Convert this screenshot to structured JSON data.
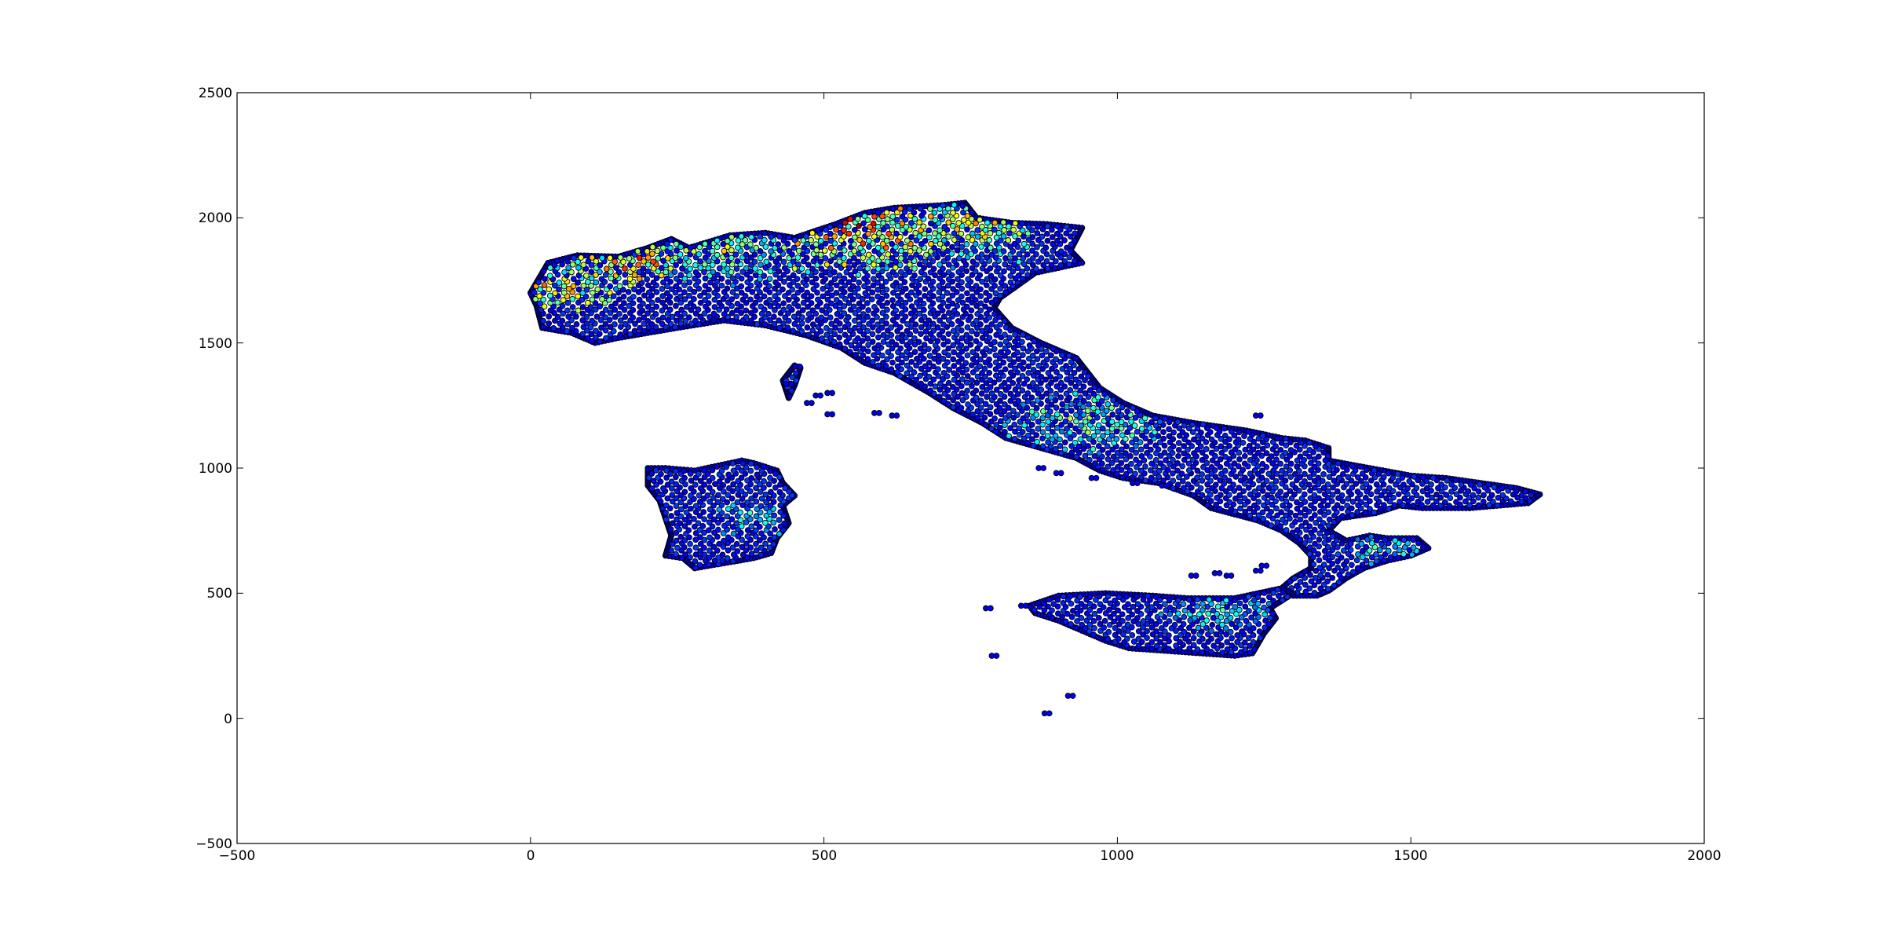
{
  "chart_data": {
    "type": "scatter",
    "title": "",
    "xlabel": "",
    "ylabel": "",
    "xlim": [
      -500,
      2000
    ],
    "ylim": [
      -500,
      2500
    ],
    "xticks": [
      -500,
      0,
      500,
      1000,
      1500,
      2000
    ],
    "yticks": [
      -500,
      0,
      500,
      1000,
      1500,
      2000,
      2500
    ],
    "xtick_labels": [
      "−500",
      "0",
      "500",
      "1000",
      "1500",
      "2000"
    ],
    "ytick_labels": [
      "−500",
      "0",
      "500",
      "1000",
      "1500",
      "2000",
      "2500"
    ],
    "grid": false,
    "colormap": "jet",
    "marker_edge_color": "#000000",
    "background_color": "#ffffff",
    "regions": [
      {
        "name": "mainland",
        "outline": [
          [
            0,
            1700
          ],
          [
            30,
            1820
          ],
          [
            80,
            1850
          ],
          [
            150,
            1845
          ],
          [
            200,
            1880
          ],
          [
            240,
            1915
          ],
          [
            270,
            1880
          ],
          [
            340,
            1930
          ],
          [
            400,
            1940
          ],
          [
            450,
            1920
          ],
          [
            520,
            1975
          ],
          [
            570,
            2020
          ],
          [
            620,
            2040
          ],
          [
            700,
            2050
          ],
          [
            740,
            2060
          ],
          [
            760,
            2000
          ],
          [
            820,
            1980
          ],
          [
            880,
            1975
          ],
          [
            940,
            1960
          ],
          [
            920,
            1870
          ],
          [
            940,
            1820
          ],
          [
            900,
            1800
          ],
          [
            860,
            1780
          ],
          [
            830,
            1730
          ],
          [
            800,
            1680
          ],
          [
            790,
            1640
          ],
          [
            820,
            1560
          ],
          [
            870,
            1500
          ],
          [
            930,
            1440
          ],
          [
            970,
            1320
          ],
          [
            1010,
            1260
          ],
          [
            1060,
            1210
          ],
          [
            1130,
            1180
          ],
          [
            1220,
            1150
          ],
          [
            1280,
            1120
          ],
          [
            1320,
            1110
          ],
          [
            1360,
            1080
          ],
          [
            1360,
            1030
          ],
          [
            1430,
            1000
          ],
          [
            1500,
            970
          ],
          [
            1560,
            960
          ],
          [
            1620,
            940
          ],
          [
            1680,
            920
          ],
          [
            1720,
            895
          ],
          [
            1700,
            860
          ],
          [
            1600,
            840
          ],
          [
            1520,
            840
          ],
          [
            1480,
            850
          ],
          [
            1440,
            820
          ],
          [
            1380,
            800
          ],
          [
            1360,
            750
          ],
          [
            1390,
            710
          ],
          [
            1430,
            730
          ],
          [
            1460,
            720
          ],
          [
            1510,
            720
          ],
          [
            1530,
            680
          ],
          [
            1500,
            650
          ],
          [
            1460,
            630
          ],
          [
            1420,
            600
          ],
          [
            1390,
            560
          ],
          [
            1360,
            510
          ],
          [
            1340,
            490
          ],
          [
            1300,
            490
          ],
          [
            1280,
            520
          ],
          [
            1300,
            560
          ],
          [
            1330,
            600
          ],
          [
            1330,
            650
          ],
          [
            1310,
            700
          ],
          [
            1280,
            750
          ],
          [
            1240,
            790
          ],
          [
            1160,
            840
          ],
          [
            1130,
            890
          ],
          [
            1070,
            940
          ],
          [
            1010,
            960
          ],
          [
            970,
            990
          ],
          [
            930,
            1040
          ],
          [
            870,
            1080
          ],
          [
            810,
            1120
          ],
          [
            770,
            1180
          ],
          [
            720,
            1240
          ],
          [
            680,
            1300
          ],
          [
            620,
            1380
          ],
          [
            570,
            1420
          ],
          [
            530,
            1480
          ],
          [
            470,
            1530
          ],
          [
            400,
            1570
          ],
          [
            330,
            1590
          ],
          [
            250,
            1560
          ],
          [
            200,
            1540
          ],
          [
            150,
            1520
          ],
          [
            110,
            1500
          ],
          [
            70,
            1540
          ],
          [
            20,
            1560
          ],
          [
            10,
            1650
          ]
        ],
        "hot_spots": [
          {
            "x": 60,
            "y": 1720,
            "level": 0.65,
            "spread": 120
          },
          {
            "x": 170,
            "y": 1820,
            "level": 0.7,
            "spread": 120
          },
          {
            "x": 560,
            "y": 1960,
            "level": 0.72,
            "spread": 220
          },
          {
            "x": 760,
            "y": 1970,
            "level": 0.55,
            "spread": 180
          },
          {
            "x": 330,
            "y": 1880,
            "level": 0.5,
            "spread": 160
          },
          {
            "x": 950,
            "y": 1180,
            "level": 0.45,
            "spread": 160
          },
          {
            "x": 1450,
            "y": 680,
            "level": 0.35,
            "spread": 100
          }
        ]
      },
      {
        "name": "sicily",
        "outline": [
          [
            850,
            450
          ],
          [
            900,
            490
          ],
          [
            980,
            500
          ],
          [
            1060,
            490
          ],
          [
            1120,
            480
          ],
          [
            1200,
            480
          ],
          [
            1280,
            520
          ],
          [
            1300,
            500
          ],
          [
            1260,
            440
          ],
          [
            1270,
            400
          ],
          [
            1250,
            340
          ],
          [
            1230,
            260
          ],
          [
            1200,
            250
          ],
          [
            1140,
            260
          ],
          [
            1080,
            270
          ],
          [
            1020,
            280
          ],
          [
            980,
            310
          ],
          [
            940,
            350
          ],
          [
            900,
            390
          ],
          [
            860,
            420
          ]
        ],
        "hot_spots": [
          {
            "x": 1180,
            "y": 420,
            "level": 0.35,
            "spread": 120
          }
        ]
      },
      {
        "name": "sardinia",
        "outline": [
          [
            200,
            1000
          ],
          [
            230,
            1000
          ],
          [
            280,
            990
          ],
          [
            320,
            1010
          ],
          [
            360,
            1030
          ],
          [
            380,
            1020
          ],
          [
            420,
            990
          ],
          [
            430,
            940
          ],
          [
            450,
            890
          ],
          [
            430,
            850
          ],
          [
            440,
            780
          ],
          [
            420,
            720
          ],
          [
            410,
            660
          ],
          [
            380,
            640
          ],
          [
            330,
            620
          ],
          [
            280,
            600
          ],
          [
            260,
            640
          ],
          [
            230,
            650
          ],
          [
            240,
            730
          ],
          [
            230,
            800
          ],
          [
            220,
            870
          ],
          [
            200,
            930
          ]
        ],
        "hot_spots": [
          {
            "x": 380,
            "y": 800,
            "level": 0.35,
            "spread": 100
          }
        ]
      },
      {
        "name": "corsica",
        "outline": [
          [
            440,
            1280
          ],
          [
            430,
            1350
          ],
          [
            450,
            1410
          ],
          [
            460,
            1400
          ],
          [
            450,
            1330
          ]
        ],
        "hot_spots": []
      }
    ],
    "small_islands": [
      [
        455,
        1405
      ],
      [
        440,
        1335
      ],
      [
        490,
        1290
      ],
      [
        510,
        1300
      ],
      [
        475,
        1260
      ],
      [
        510,
        1215
      ],
      [
        590,
        1220
      ],
      [
        620,
        1210
      ],
      [
        780,
        440
      ],
      [
        790,
        250
      ],
      [
        870,
        1000
      ],
      [
        900,
        980
      ],
      [
        960,
        960
      ],
      [
        1030,
        940
      ],
      [
        1080,
        930
      ],
      [
        1130,
        570
      ],
      [
        1170,
        580
      ],
      [
        1240,
        590
      ],
      [
        1250,
        610
      ],
      [
        1190,
        570
      ],
      [
        1240,
        1210
      ],
      [
        880,
        20
      ],
      [
        920,
        90
      ],
      [
        840,
        450
      ]
    ]
  }
}
